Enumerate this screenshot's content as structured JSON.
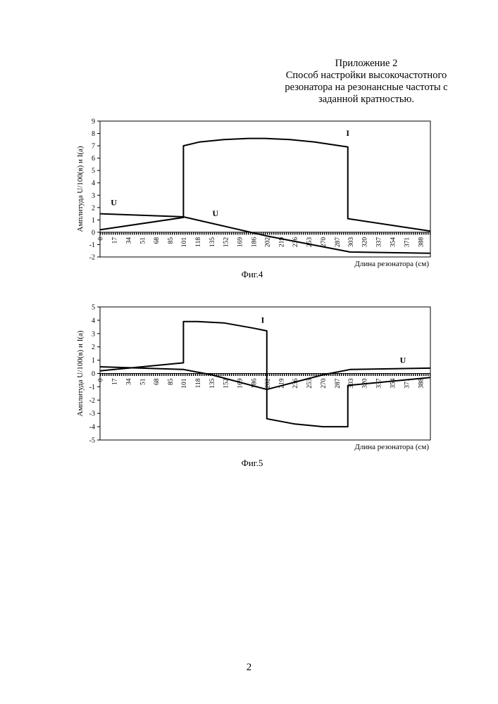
{
  "header": {
    "lines": [
      "Приложение 2",
      "Способ настройки высокочастотного",
      "резонатора на резонансные частоты с",
      "заданной кратностью."
    ]
  },
  "page_number": "2",
  "chart_data": [
    {
      "type": "line",
      "caption": "Фиг.4",
      "ylabel": "Амплитуда U/100(в) и I(а)",
      "xlabel": "Длина резонатора (см)",
      "ylim": [
        -2,
        9
      ],
      "yticks": [
        -2,
        -1,
        0,
        1,
        2,
        3,
        4,
        5,
        6,
        7,
        8,
        9
      ],
      "xlim": [
        0,
        400
      ],
      "xticks": [
        0,
        17,
        34,
        51,
        68,
        85,
        101,
        118,
        135,
        152,
        169,
        186,
        202,
        219,
        236,
        253,
        270,
        287,
        303,
        320,
        337,
        354,
        371,
        388
      ],
      "series": [
        {
          "name": "I",
          "x": [
            0,
            101,
            101,
            120,
            150,
            180,
            200,
            230,
            260,
            300,
            300,
            400
          ],
          "y": [
            0.2,
            1.2,
            7.0,
            7.3,
            7.5,
            7.6,
            7.6,
            7.5,
            7.3,
            6.9,
            1.1,
            0.1
          ]
        },
        {
          "name": "U",
          "x": [
            0,
            101,
            202,
            303,
            400
          ],
          "y": [
            1.5,
            1.25,
            -0.3,
            -1.6,
            -1.7
          ]
        }
      ],
      "annotations": [
        {
          "text": "I",
          "x": 298,
          "y": 7.8
        },
        {
          "text": "U",
          "x": 13,
          "y": 2.2
        },
        {
          "text": "U",
          "x": 136,
          "y": 1.3
        }
      ]
    },
    {
      "type": "line",
      "caption": "Фиг.5",
      "ylabel": "Амплитуда U/100(в) и I(а)",
      "xlabel": "Длина резонатора (см)",
      "ylim": [
        -5,
        5
      ],
      "yticks": [
        -5,
        -4,
        -3,
        -2,
        -1,
        0,
        1,
        2,
        3,
        4,
        5
      ],
      "xlim": [
        0,
        400
      ],
      "xticks": [
        0,
        17,
        34,
        51,
        68,
        85,
        101,
        118,
        135,
        152,
        169,
        186,
        202,
        219,
        236,
        253,
        270,
        287,
        303,
        320,
        337,
        354,
        371,
        388
      ],
      "series": [
        {
          "name": "I",
          "x": [
            0,
            101,
            101,
            118,
            150,
            186,
            202,
            202,
            236,
            270,
            300,
            300,
            400
          ],
          "y": [
            0.2,
            0.8,
            3.9,
            3.9,
            3.8,
            3.4,
            3.2,
            -3.4,
            -3.8,
            -4.0,
            -4.0,
            -0.9,
            -0.3
          ]
        },
        {
          "name": "U",
          "x": [
            0,
            101,
            135,
            202,
            270,
            303,
            400
          ],
          "y": [
            0.5,
            0.3,
            -0.1,
            -1.2,
            -0.1,
            0.3,
            0.4
          ]
        }
      ],
      "annotations": [
        {
          "text": "I",
          "x": 195,
          "y": 3.8
        },
        {
          "text": "U",
          "x": 363,
          "y": 0.8
        }
      ]
    }
  ]
}
